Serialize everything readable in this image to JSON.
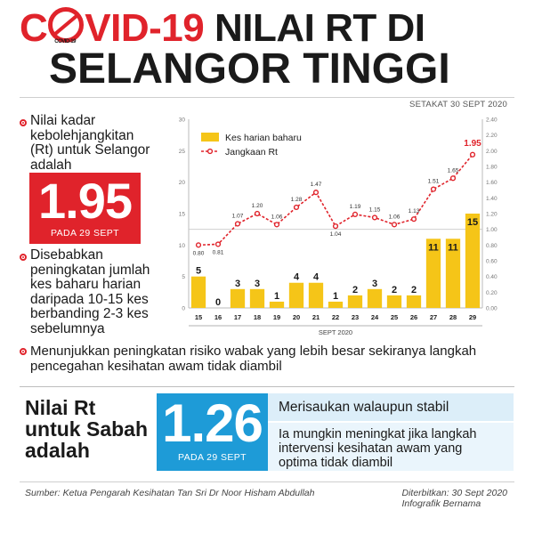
{
  "title": {
    "line1_red": "COVID-19",
    "line1_rest": "NILAI RT DI",
    "line2": "SELANGOR TINGGI"
  },
  "as_of": "SETAKAT 30 SEPT 2020",
  "selangor": {
    "intro": [
      "Nilai kadar",
      "kebolehjangkitan",
      "(Rt) untuk Selangor",
      "adalah"
    ],
    "rt_value": "1.95",
    "rt_date": "PADA 29 SEPT",
    "cause": [
      "Disebabkan",
      "peningkatan jumlah",
      "kes baharu harian",
      "daripada 10-15 kes",
      "berbanding 2-3 kes",
      "sebelumnya"
    ]
  },
  "risk_note": "Menunjukkan peningkatan risiko wabak yang lebih besar sekiranya langkah pencegahan kesihatan awam tidak diambil",
  "sabah": {
    "label": [
      "Nilai Rt",
      "untuk Sabah",
      "adalah"
    ],
    "rt_value": "1.26",
    "rt_date": "PADA 29 SEPT",
    "stable_note": "Merisaukan walaupun stabil",
    "warning": "Ia mungkin meningkat jika langkah intervensi kesihatan awam yang optima tidak diambil"
  },
  "source": "Sumber: Ketua Pengarah Kesihatan Tan Sri Dr Noor Hisham Abdullah",
  "published": [
    "Diterbitkan: 30 Sept 2020",
    "Infografik Bernama"
  ],
  "colors": {
    "red": "#e0232b",
    "bar": "#f5c518",
    "blue": "#1e9bd7"
  },
  "chart_data": {
    "type": "bar",
    "xlabel": "SEPT 2020",
    "categories": [
      "15",
      "16",
      "17",
      "18",
      "19",
      "20",
      "21",
      "22",
      "23",
      "24",
      "25",
      "26",
      "27",
      "28",
      "29"
    ],
    "series": [
      {
        "name": "Kes harian baharu",
        "type": "bar",
        "axis": "left",
        "values": [
          5,
          0,
          3,
          3,
          1,
          4,
          4,
          1,
          2,
          3,
          2,
          2,
          11,
          11,
          15
        ]
      },
      {
        "name": "Jangkaan Rt",
        "type": "line",
        "axis": "right",
        "values": [
          0.8,
          0.81,
          1.07,
          1.2,
          1.06,
          1.28,
          1.47,
          1.04,
          1.19,
          1.15,
          1.06,
          1.13,
          1.51,
          1.65,
          1.95
        ]
      }
    ],
    "left_axis": {
      "range": [
        0,
        30
      ],
      "ticks": [
        "0",
        "5",
        "10",
        "15",
        "20",
        "25",
        "30"
      ]
    },
    "right_axis": {
      "range": [
        0,
        2.4
      ],
      "ticks": [
        "0.00",
        "0.20",
        "0.40",
        "0.60",
        "0.80",
        "1.00",
        "1.20",
        "1.40",
        "1.60",
        "1.80",
        "2.00",
        "2.20",
        "2.40"
      ]
    },
    "reference_line_left": 12.5,
    "legend_position": "top-left",
    "grid": false
  }
}
